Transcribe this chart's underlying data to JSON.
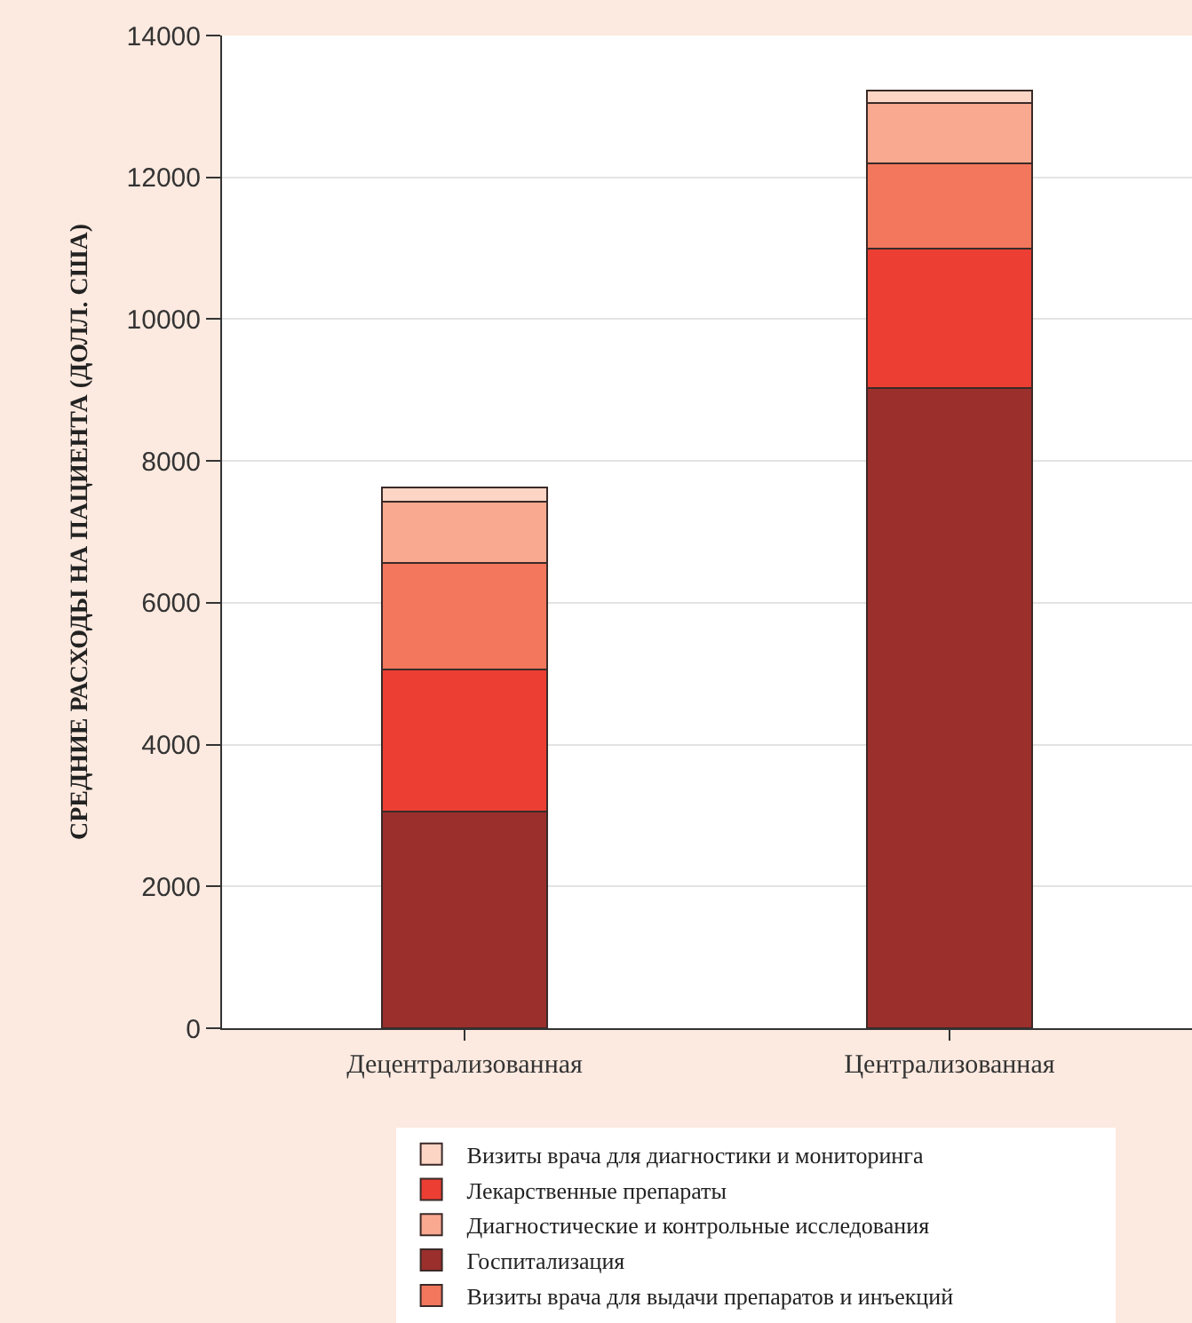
{
  "chart_data": {
    "type": "bar",
    "stacked": true,
    "ylabel": "СРЕДНИЕ РАСХОДЫ НА ПАЦИЕНТА (ДОЛЛ. США)",
    "categories": [
      "Децентрализованная",
      "Централизованная"
    ],
    "series": [
      {
        "name": "Госпитализация",
        "color": "#9b2f2c",
        "values": [
          3050,
          9030
        ]
      },
      {
        "name": "Лекарственные препараты",
        "color": "#ed3e33",
        "values": [
          2010,
          1960
        ]
      },
      {
        "name": "Визиты врача для выдачи препаратов и инъекций",
        "color": "#f2775d",
        "values": [
          1500,
          1210
        ]
      },
      {
        "name": "Диагностические и контрольные исследования",
        "color": "#f9a98f",
        "values": [
          870,
          850
        ]
      },
      {
        "name": "Визиты врача для диагностики и мониторинга",
        "color": "#fcd5c5",
        "values": [
          190,
          170
        ]
      }
    ],
    "ylim": [
      0,
      14000
    ],
    "yticks": [
      0,
      2000,
      4000,
      6000,
      8000,
      10000,
      12000,
      14000
    ],
    "grid": "y",
    "legend": "bottom"
  }
}
